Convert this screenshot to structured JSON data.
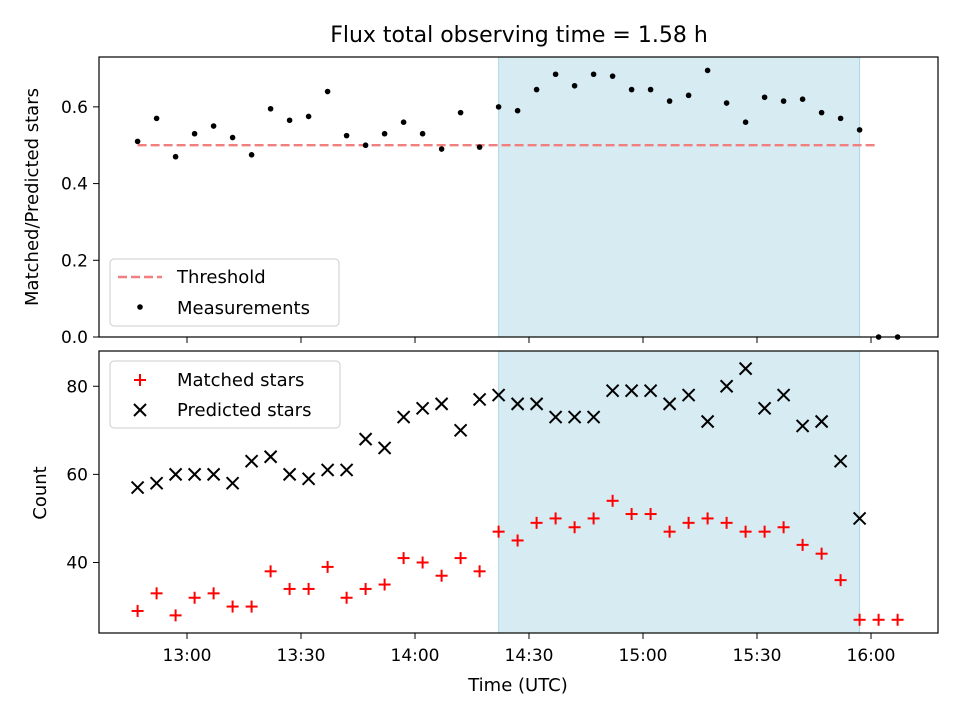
{
  "chart_data": {
    "title": "Flux total observing time = 1.58 h",
    "xlabel": "Time (UTC)",
    "x_ticks": [
      "13:00",
      "13:30",
      "14:00",
      "14:30",
      "15:00",
      "15:30",
      "16:00"
    ],
    "highlight": {
      "start": "14:22",
      "end": "15:57",
      "color": "#add8e6"
    },
    "panels": [
      {
        "type": "scatter",
        "ylabel": "Matched/Predicted stars",
        "ylim": [
          0.0,
          0.73
        ],
        "y_ticks": [
          "0.0",
          "0.2",
          "0.4",
          "0.6"
        ],
        "legend_position": "lower-left",
        "threshold": {
          "name": "Threshold",
          "value": 0.5,
          "x_start": "12:47",
          "x_end": "16:02",
          "color": "#f08080"
        },
        "series": [
          {
            "name": "Measurements",
            "color": "#000000",
            "marker": "dot",
            "x": [
              "12:47",
              "12:52",
              "12:57",
              "13:02",
              "13:07",
              "13:12",
              "13:17",
              "13:22",
              "13:27",
              "13:32",
              "13:37",
              "13:42",
              "13:47",
              "13:52",
              "13:57",
              "14:02",
              "14:07",
              "14:12",
              "14:17",
              "14:22",
              "14:27",
              "14:32",
              "14:37",
              "14:42",
              "14:47",
              "14:52",
              "14:57",
              "15:02",
              "15:07",
              "15:12",
              "15:17",
              "15:22",
              "15:27",
              "15:32",
              "15:37",
              "15:42",
              "15:47",
              "15:52",
              "15:57",
              "16:02",
              "16:07"
            ],
            "y": [
              0.51,
              0.57,
              0.47,
              0.53,
              0.55,
              0.52,
              0.475,
              0.595,
              0.565,
              0.575,
              0.64,
              0.525,
              0.5,
              0.53,
              0.56,
              0.53,
              0.49,
              0.585,
              0.495,
              0.6,
              0.59,
              0.645,
              0.685,
              0.655,
              0.685,
              0.68,
              0.645,
              0.645,
              0.615,
              0.63,
              0.695,
              0.61,
              0.56,
              0.625,
              0.615,
              0.62,
              0.585,
              0.57,
              0.54,
              0.0,
              0.0
            ]
          }
        ]
      },
      {
        "type": "scatter",
        "ylabel": "Count",
        "ylim": [
          24,
          88
        ],
        "y_ticks": [
          "40",
          "60",
          "80"
        ],
        "legend_position": "upper-left",
        "series": [
          {
            "name": "Matched stars",
            "color": "#ff0000",
            "marker": "plus",
            "x": [
              "12:47",
              "12:52",
              "12:57",
              "13:02",
              "13:07",
              "13:12",
              "13:17",
              "13:22",
              "13:27",
              "13:32",
              "13:37",
              "13:42",
              "13:47",
              "13:52",
              "13:57",
              "14:02",
              "14:07",
              "14:12",
              "14:17",
              "14:22",
              "14:27",
              "14:32",
              "14:37",
              "14:42",
              "14:47",
              "14:52",
              "14:57",
              "15:02",
              "15:07",
              "15:12",
              "15:17",
              "15:22",
              "15:27",
              "15:32",
              "15:37",
              "15:42",
              "15:47",
              "15:52",
              "15:57",
              "16:02",
              "16:07"
            ],
            "y": [
              29,
              33,
              28,
              32,
              33,
              30,
              30,
              38,
              34,
              34,
              39,
              32,
              34,
              35,
              41,
              40,
              37,
              41,
              38,
              47,
              45,
              49,
              50,
              48,
              50,
              54,
              51,
              51,
              47,
              49,
              50,
              49,
              47,
              47,
              48,
              44,
              42,
              36,
              27,
              27,
              27
            ]
          },
          {
            "name": "Predicted stars",
            "color": "#000000",
            "marker": "x",
            "x": [
              "12:47",
              "12:52",
              "12:57",
              "13:02",
              "13:07",
              "13:12",
              "13:17",
              "13:22",
              "13:27",
              "13:32",
              "13:37",
              "13:42",
              "13:47",
              "13:52",
              "13:57",
              "14:02",
              "14:07",
              "14:12",
              "14:17",
              "14:22",
              "14:27",
              "14:32",
              "14:37",
              "14:42",
              "14:47",
              "14:52",
              "14:57",
              "15:02",
              "15:07",
              "15:12",
              "15:17",
              "15:22",
              "15:27",
              "15:32",
              "15:37",
              "15:42",
              "15:47",
              "15:52",
              "15:57"
            ],
            "y": [
              57,
              58,
              60,
              60,
              60,
              58,
              63,
              64,
              60,
              59,
              61,
              61,
              68,
              66,
              73,
              75,
              76,
              70,
              77,
              78,
              76,
              76,
              73,
              73,
              73,
              79,
              79,
              79,
              76,
              78,
              72,
              80,
              84,
              75,
              78,
              71,
              72,
              63,
              50
            ]
          }
        ]
      }
    ]
  }
}
